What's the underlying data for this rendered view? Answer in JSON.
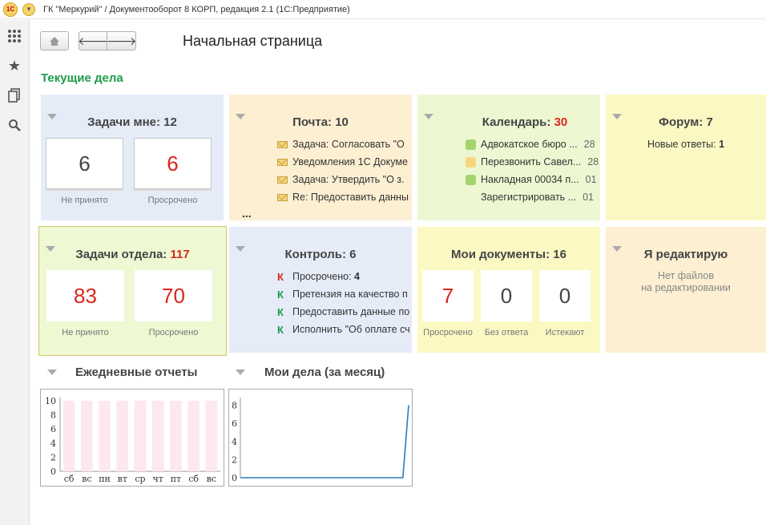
{
  "window": {
    "title": "ГК \"Меркурий\" / Документооборот 8 КОРП, редакция 2.1   (1С:Предприятие)",
    "logo_text": "1С"
  },
  "page": {
    "title": "Начальная страница",
    "section": "Текущие дела"
  },
  "tiles": {
    "my_tasks": {
      "title": "Задачи мне: 12",
      "counters": [
        {
          "value": "6",
          "label": "Не принято"
        },
        {
          "value": "6",
          "label": "Просрочено"
        }
      ]
    },
    "mail": {
      "title": "Почта: 10",
      "items": [
        "Задача: Согласовать \"О",
        "Уведомления 1С Докуме",
        "Задача: Утвердить \"О з.",
        "Re: Предоставить данны"
      ],
      "more": "..."
    },
    "calendar": {
      "title_prefix": "Календарь:",
      "title_count": "30",
      "items": [
        {
          "text": "Адвокатское бюро ...",
          "date": "28",
          "color": "#a5d36e"
        },
        {
          "text": "Перезвонить Савел...",
          "date": "28",
          "color": "#f6d77e"
        },
        {
          "text": "Накладная 00034 п...",
          "date": "01",
          "color": "#a5d36e"
        },
        {
          "text": "Зарегистрировать ...",
          "date": "01",
          "color": ""
        }
      ]
    },
    "forum": {
      "title": "Форум: 7",
      "new_label": "Новые ответы:",
      "new_count": "1"
    },
    "dept_tasks": {
      "title_prefix": "Задачи отдела:",
      "title_count": "117",
      "counters": [
        {
          "value": "83",
          "label": "Не принято"
        },
        {
          "value": "70",
          "label": "Просрочено"
        }
      ]
    },
    "control": {
      "title": "Контроль: 6",
      "items": [
        {
          "text": "Просрочено:",
          "count": "4",
          "letter": "К",
          "color": "#d9261c"
        },
        {
          "text": "Претензия на качество п",
          "count": "",
          "letter": "К",
          "color": "#1f9b4b"
        },
        {
          "text": "Предоставить данные по",
          "count": "",
          "letter": "К",
          "color": "#1f9b4b"
        },
        {
          "text": "Исполнить \"Об оплате сч",
          "count": "",
          "letter": "К",
          "color": "#1f9b4b"
        }
      ]
    },
    "my_docs": {
      "title": "Мои документы: 16",
      "counters": [
        {
          "value": "7",
          "label": "Просрочено"
        },
        {
          "value": "0",
          "label": "Без ответа"
        },
        {
          "value": "0",
          "label": "Истекают"
        }
      ]
    },
    "editing": {
      "title": "Я редактирую",
      "empty_line1": "Нет файлов",
      "empty_line2": "на редактировании"
    }
  },
  "charts": {
    "daily": {
      "title": "Ежедневные отчеты"
    },
    "monthly": {
      "title": "Мои дела (за месяц)"
    }
  },
  "chart_data": [
    {
      "type": "bar",
      "title": "Ежедневные отчеты",
      "categories": [
        "сб",
        "вс",
        "пн",
        "вт",
        "ср",
        "чт",
        "пт",
        "сб",
        "вс"
      ],
      "values": [
        10,
        10,
        10,
        10,
        10,
        10,
        10,
        10,
        10
      ],
      "yticks": [
        0,
        2,
        4,
        6,
        8,
        10
      ],
      "ylim": [
        0,
        10
      ],
      "bar_color": "#fde8ee"
    },
    {
      "type": "line",
      "title": "Мои дела (за месяц)",
      "x": [
        0,
        1,
        2,
        3,
        4,
        5,
        6,
        7,
        8,
        9,
        10,
        11,
        12,
        13,
        14,
        15,
        16,
        17,
        18,
        19,
        20,
        21,
        22,
        23,
        24,
        25,
        26,
        27,
        28,
        29
      ],
      "values": [
        0,
        0,
        0,
        0,
        0,
        0,
        0,
        0,
        0,
        0,
        0,
        0,
        0,
        0,
        0,
        0,
        0,
        0,
        0,
        0,
        0,
        0,
        0,
        0,
        0,
        0,
        0,
        0,
        0,
        8
      ],
      "yticks": [
        0,
        2,
        4,
        6,
        8
      ],
      "ylim": [
        0,
        8.5
      ],
      "line_color": "#2e7bb5"
    }
  ]
}
